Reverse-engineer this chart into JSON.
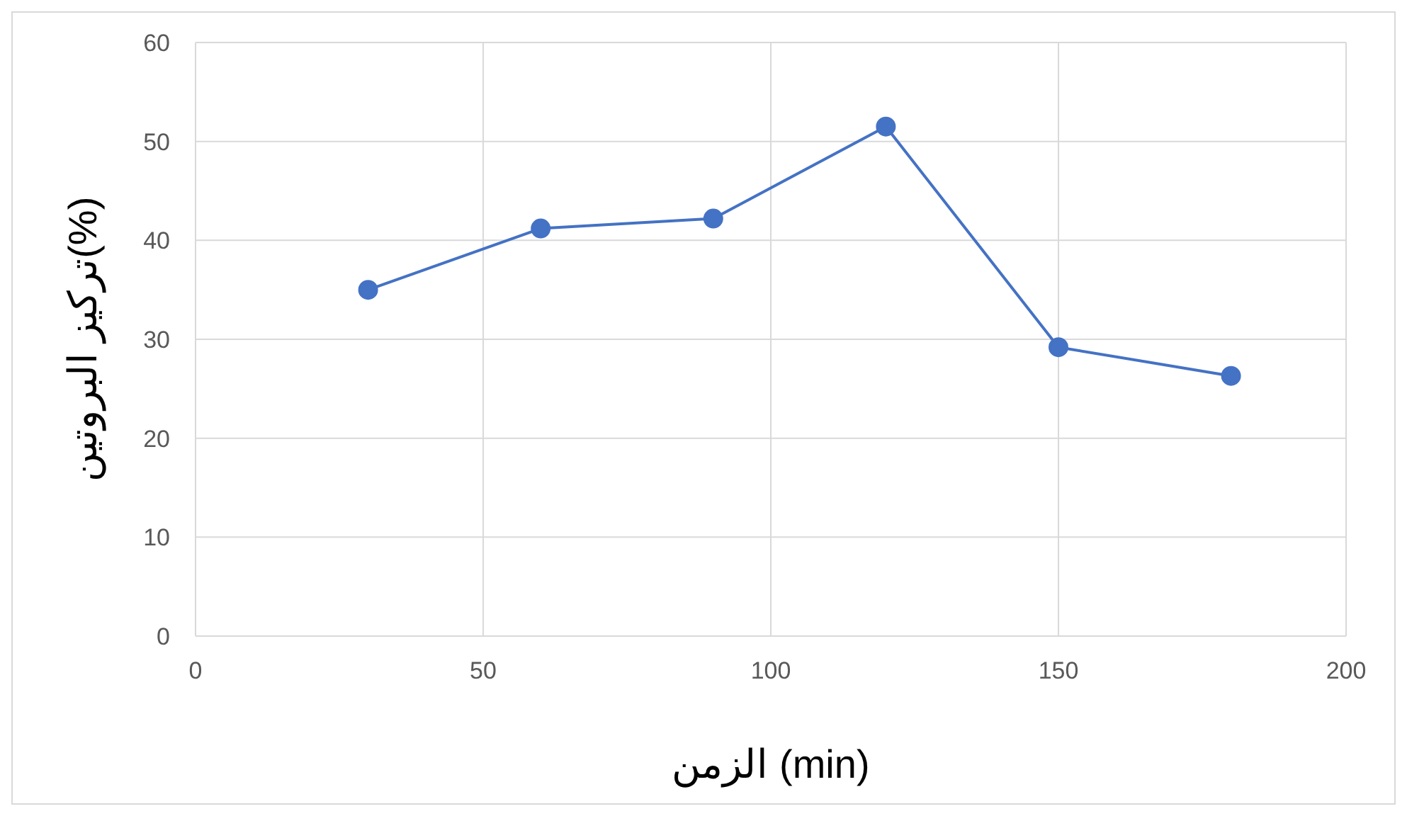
{
  "chart_data": {
    "type": "line",
    "xlabel": "الزمن (min)",
    "ylabel": "تركيز البروتين(%)",
    "x": [
      30,
      60,
      90,
      120,
      150,
      180
    ],
    "series": [
      {
        "color": "#4472c4",
        "values": [
          35,
          41.2,
          42.2,
          51.5,
          29.2,
          26.3
        ]
      }
    ],
    "xlim": [
      0,
      200
    ],
    "xticks": [
      0,
      50,
      100,
      150,
      200
    ],
    "ylim": [
      0,
      60
    ],
    "yticks": [
      0,
      10,
      20,
      30,
      40,
      50,
      60
    ],
    "grid": true,
    "marker": "circle",
    "line_style": "solid",
    "legend": false
  }
}
